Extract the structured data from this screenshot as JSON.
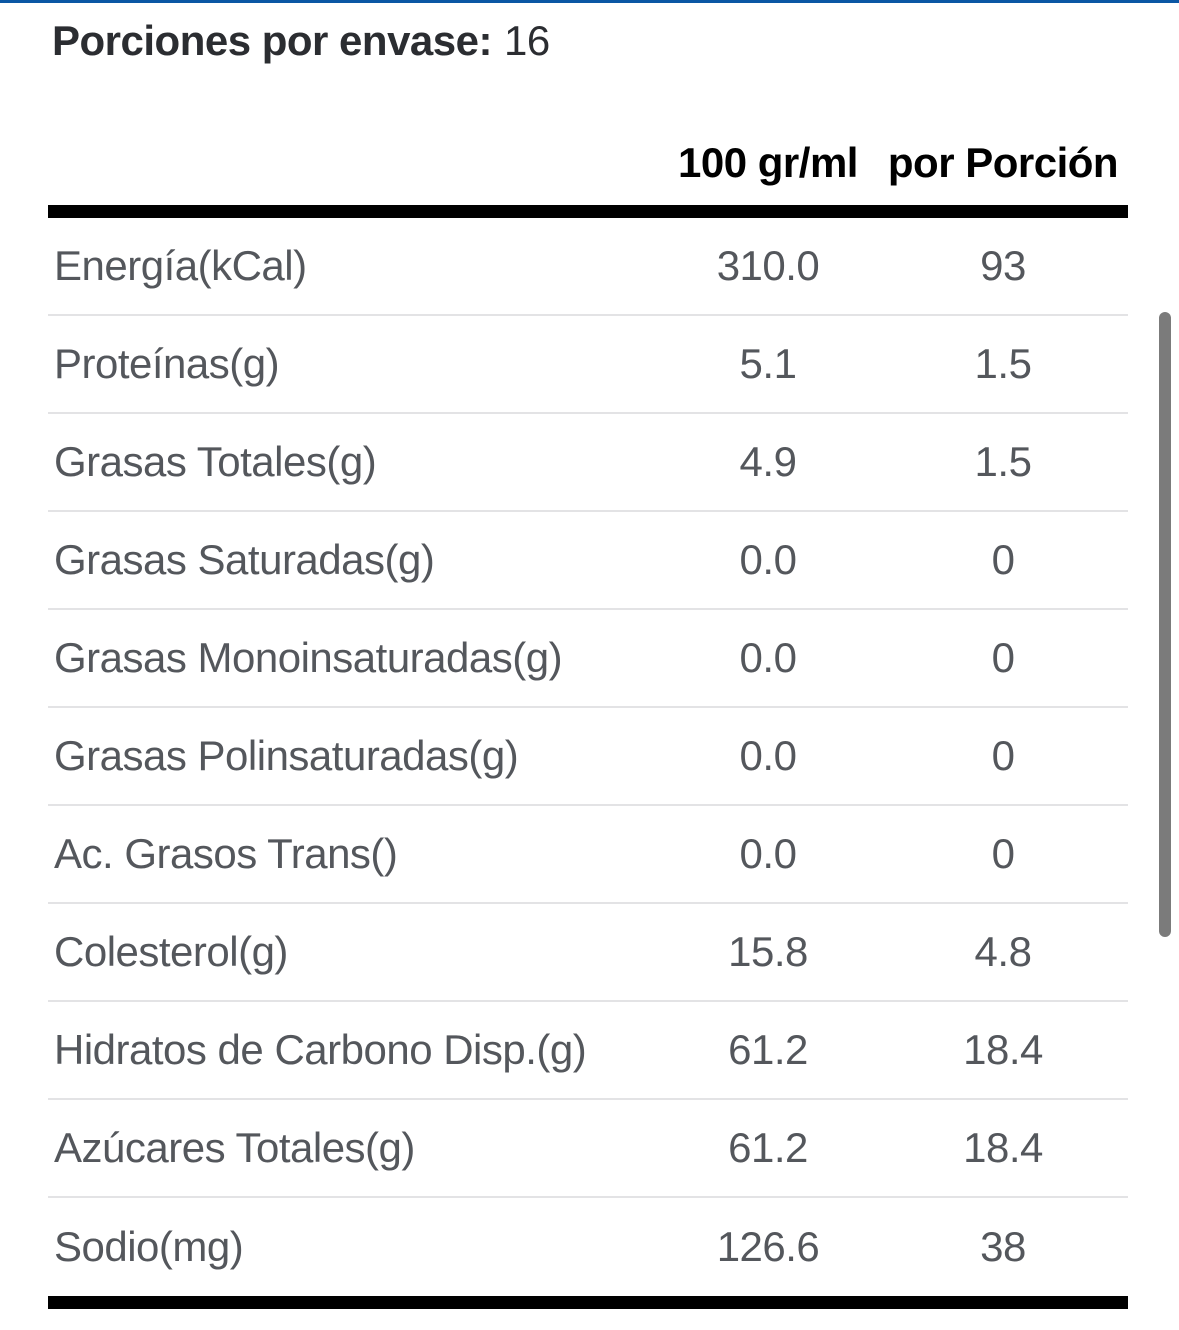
{
  "servings": {
    "label": "Porciones por envase:",
    "value": "16"
  },
  "table": {
    "columns": [
      "100 gr/ml",
      "por Porción"
    ],
    "rows": [
      {
        "label": "Energía(kCal)",
        "per100": "310.0",
        "perPortion": "93"
      },
      {
        "label": "Proteínas(g)",
        "per100": "5.1",
        "perPortion": "1.5"
      },
      {
        "label": "Grasas Totales(g)",
        "per100": "4.9",
        "perPortion": "1.5"
      },
      {
        "label": "Grasas Saturadas(g)",
        "per100": "0.0",
        "perPortion": "0"
      },
      {
        "label": "Grasas Monoinsaturadas(g)",
        "per100": "0.0",
        "perPortion": "0"
      },
      {
        "label": "Grasas Polinsaturadas(g)",
        "per100": "0.0",
        "perPortion": "0"
      },
      {
        "label": "Ac. Grasos Trans()",
        "per100": "0.0",
        "perPortion": "0"
      },
      {
        "label": "Colesterol(g)",
        "per100": "15.8",
        "perPortion": "4.8"
      },
      {
        "label": "Hidratos de Carbono Disp.(g)",
        "per100": "61.2",
        "perPortion": "18.4"
      },
      {
        "label": "Azúcares Totales(g)",
        "per100": "61.2",
        "perPortion": "18.4"
      },
      {
        "label": "Sodio(mg)",
        "per100": "126.6",
        "perPortion": "38"
      }
    ]
  },
  "colors": {
    "top_border_accent": "#0b57a4",
    "header_bar": "#000000",
    "row_text": "#54575c",
    "scrollbar_thumb": "#7b7b7b"
  }
}
